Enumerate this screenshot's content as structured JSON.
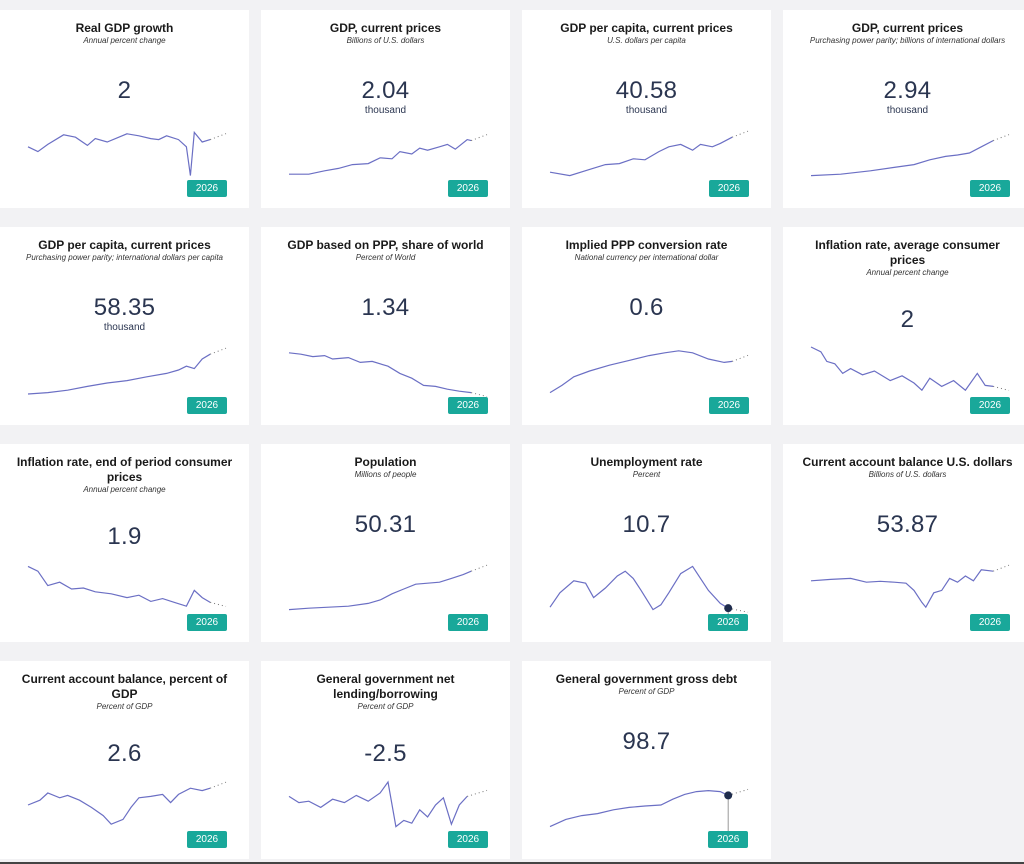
{
  "cards": [
    {
      "title": "Real GDP growth",
      "subtitle": "Annual percent change",
      "value": "2",
      "unit": "",
      "year": "2026"
    },
    {
      "title": "GDP, current prices",
      "subtitle": "Billions of U.S. dollars",
      "value": "2.04",
      "unit": "thousand",
      "year": "2026"
    },
    {
      "title": "GDP per capita, current prices",
      "subtitle": "U.S. dollars per capita",
      "value": "40.58",
      "unit": "thousand",
      "year": "2026"
    },
    {
      "title": "GDP, current prices",
      "subtitle": "Purchasing power parity; billions of international dollars",
      "value": "2.94",
      "unit": "thousand",
      "year": "2026"
    },
    {
      "title": "GDP per capita, current prices",
      "subtitle": "Purchasing power parity; international dollars per capita",
      "value": "58.35",
      "unit": "thousand",
      "year": "2026"
    },
    {
      "title": "GDP based on PPP, share of world",
      "subtitle": "Percent of World",
      "value": "1.34",
      "unit": "",
      "year": "2026"
    },
    {
      "title": "Implied PPP conversion rate",
      "subtitle": "National currency per international dollar",
      "value": "0.6",
      "unit": "",
      "year": "2026"
    },
    {
      "title": "Inflation rate, average consumer prices",
      "subtitle": "Annual percent change",
      "value": "2",
      "unit": "",
      "year": "2026"
    },
    {
      "title": "Inflation rate, end of period consumer prices",
      "subtitle": "Annual percent change",
      "value": "1.9",
      "unit": "",
      "year": "2026"
    },
    {
      "title": "Population",
      "subtitle": "Millions of people",
      "value": "50.31",
      "unit": "",
      "year": "2026"
    },
    {
      "title": "Unemployment rate",
      "subtitle": "Percent",
      "value": "10.7",
      "unit": "",
      "year": "2026"
    },
    {
      "title": "Current account balance U.S. dollars",
      "subtitle": "Billions of U.S. dollars",
      "value": "53.87",
      "unit": "",
      "year": "2026"
    },
    {
      "title": "Current account balance, percent of GDP",
      "subtitle": "Percent of GDP",
      "value": "2.6",
      "unit": "",
      "year": "2026"
    },
    {
      "title": "General government net lending/borrowing",
      "subtitle": "Percent of GDP",
      "value": "-2.5",
      "unit": "",
      "year": "2026"
    },
    {
      "title": "General government gross debt",
      "subtitle": "Percent of GDP",
      "value": "98.7",
      "unit": "",
      "year": "2026"
    }
  ],
  "colors": {
    "line": "#6b6fc4",
    "badge": "#19a89a",
    "value": "#2a3550",
    "marker": "#1f2c4d"
  },
  "icons": {
    "marker": "highlight-dot-icon"
  }
}
